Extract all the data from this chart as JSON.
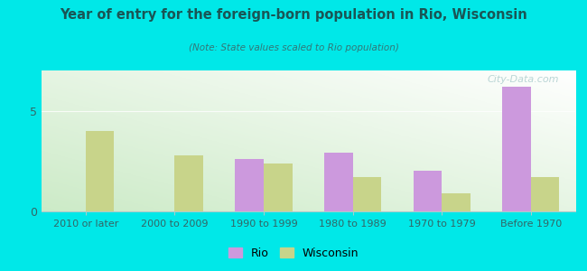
{
  "title": "Year of entry for the foreign-born population in Rio, Wisconsin",
  "subtitle": "(Note: State values scaled to Rio population)",
  "categories": [
    "2010 or later",
    "2000 to 2009",
    "1990 to 1999",
    "1980 to 1989",
    "1970 to 1979",
    "Before 1970"
  ],
  "rio_values": [
    0,
    0,
    2.6,
    2.9,
    2.0,
    6.2
  ],
  "wisconsin_values": [
    4.0,
    2.8,
    2.4,
    1.7,
    0.9,
    1.7
  ],
  "rio_color": "#cc99dd",
  "wisconsin_color": "#c8d48a",
  "background_color": "#00e8e8",
  "ylim": [
    0,
    7
  ],
  "yticks": [
    0,
    5
  ],
  "bar_width": 0.32,
  "legend_rio": "Rio",
  "legend_wisconsin": "Wisconsin",
  "watermark": "City-Data.com",
  "title_color": "#1a5555",
  "subtitle_color": "#337777",
  "tick_color": "#336666"
}
